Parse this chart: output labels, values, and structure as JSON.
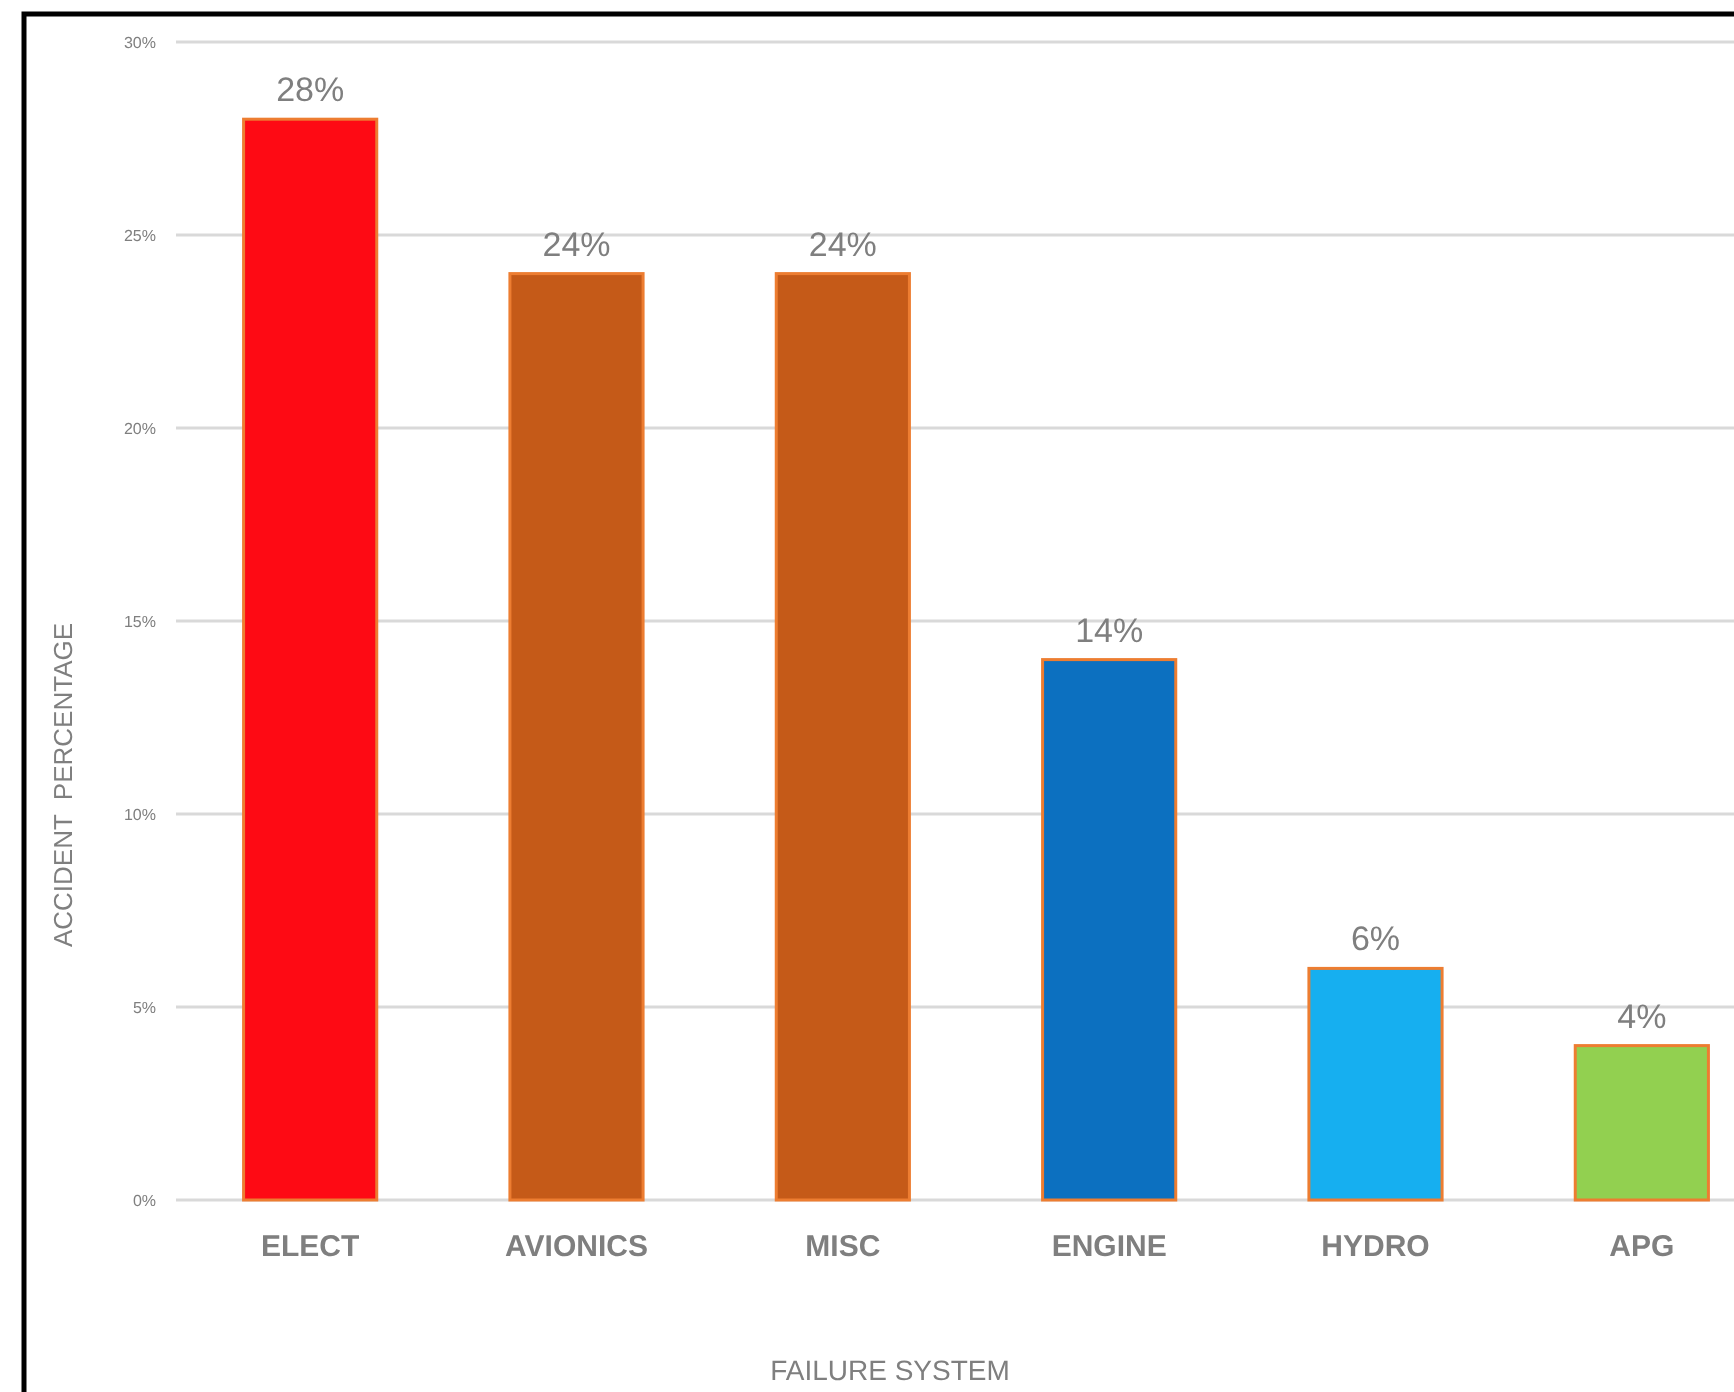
{
  "chart_data": {
    "type": "bar",
    "xlabel": "FAILURE SYSTEM",
    "ylabel": "ACCIDENT  PERCENTAGE",
    "categories": [
      "ELECT",
      "AVIONICS",
      "MISC",
      "ENGINE",
      "HYDRO",
      "APG"
    ],
    "values": [
      28,
      24,
      24,
      14,
      6,
      4
    ],
    "colors": [
      "#fe0a14",
      "#c55a18",
      "#c55a18",
      "#0c70c0",
      "#16aff0",
      "#92d050"
    ],
    "value_labels": [
      "28%",
      "24%",
      "24%",
      "14%",
      "6%",
      "4%"
    ],
    "ylim": [
      0,
      30
    ],
    "yticks": [
      {
        "value": 0,
        "label": "0%"
      },
      {
        "value": 5,
        "label": "5%"
      },
      {
        "value": 10,
        "label": "10%"
      },
      {
        "value": 15,
        "label": "15%"
      },
      {
        "value": 20,
        "label": "20%"
      },
      {
        "value": 25,
        "label": "25%"
      },
      {
        "value": 30,
        "label": "30%"
      }
    ],
    "grid": "y"
  }
}
